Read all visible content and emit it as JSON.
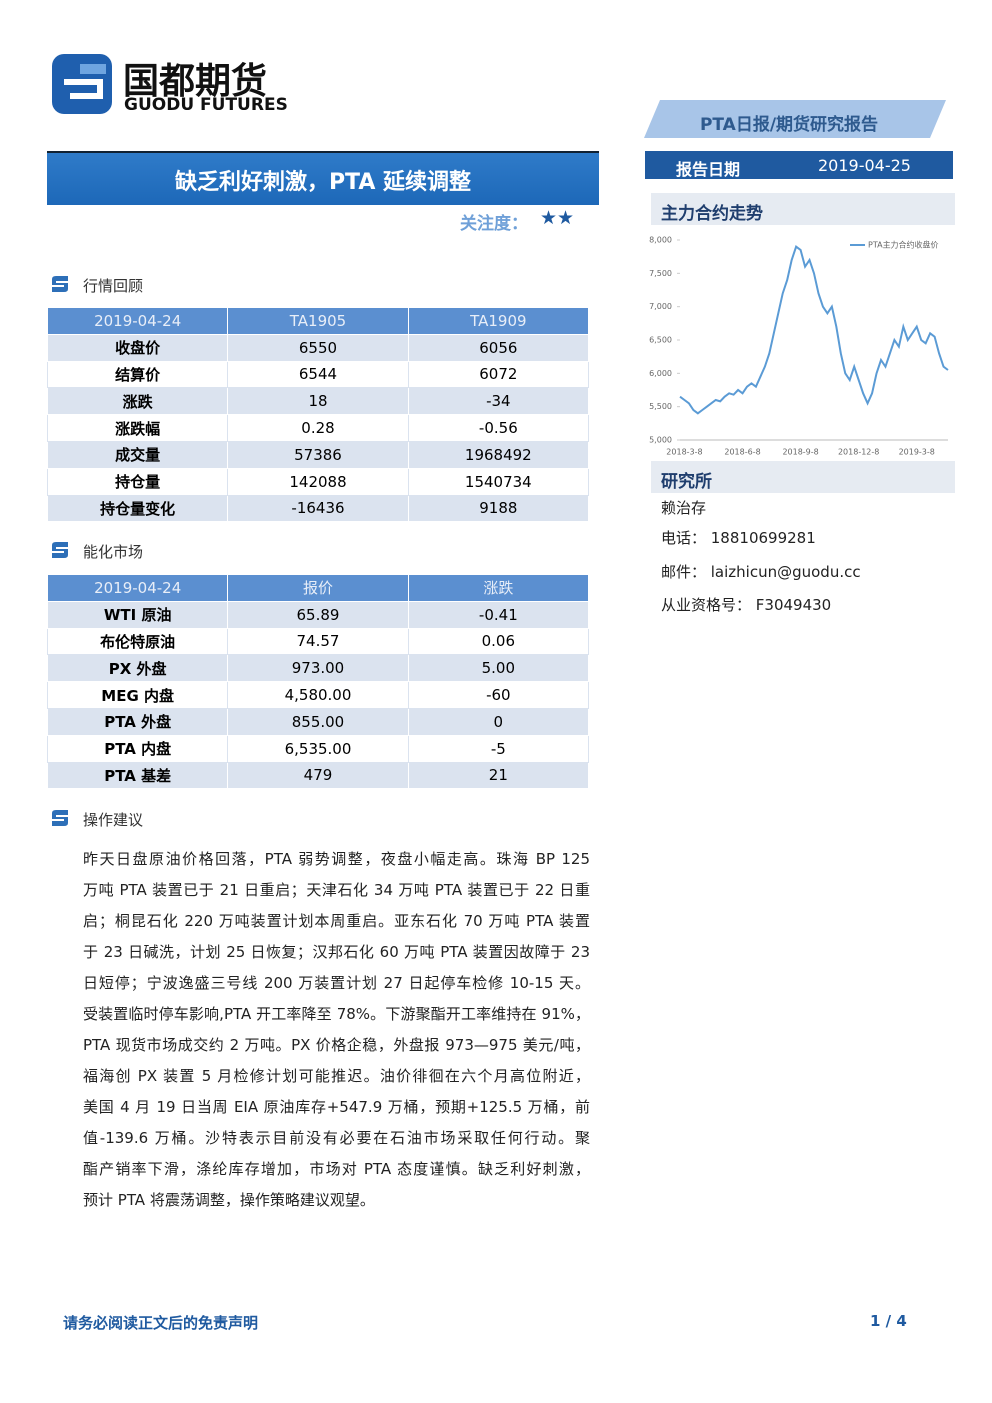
{
  "header": {
    "logo_cn": "国都期货",
    "logo_en": "GUODU FUTURES",
    "report_type": "PTA日报/期货研究报告",
    "date_label": "报告日期",
    "date": "2019-04-25"
  },
  "title": "缺乏利好刺激，PTA 延续调整",
  "attention": {
    "label": "关注度：",
    "stars": "★★"
  },
  "market_review": {
    "heading": "行情回顾",
    "table": {
      "header": [
        "2019-04-24",
        "TA1905",
        "TA1909"
      ],
      "rows": [
        [
          "收盘价",
          "6550",
          "6056"
        ],
        [
          "结算价",
          "6544",
          "6072"
        ],
        [
          "涨跌",
          "18",
          "-34"
        ],
        [
          "涨跌幅",
          "0.28",
          "-0.56"
        ],
        [
          "成交量",
          "57386",
          "1968492"
        ],
        [
          "持仓量",
          "142088",
          "1540734"
        ],
        [
          "持仓量变化",
          "-16436",
          "9188"
        ]
      ]
    }
  },
  "energy_market": {
    "heading": "能化市场",
    "table": {
      "header": [
        "2019-04-24",
        "报价",
        "涨跌"
      ],
      "rows": [
        [
          "WTI 原油",
          "65.89",
          "-0.41"
        ],
        [
          "布伦特原油",
          "74.57",
          "0.06"
        ],
        [
          "PX 外盘",
          "973.00",
          "5.00"
        ],
        [
          "MEG 内盘",
          "4,580.00",
          "-60"
        ],
        [
          "PTA 外盘",
          "855.00",
          "0"
        ],
        [
          "PTA 内盘",
          "6,535.00",
          "-5"
        ],
        [
          "PTA 基差",
          "479",
          "21"
        ]
      ]
    }
  },
  "advice": {
    "heading": "操作建议",
    "lines": [
      "昨天日盘原油价格回落，PTA 弱势调整，夜盘小幅走高。珠海 BP 125",
      "万吨 PTA 装置已于 21 日重启；天津石化 34 万吨 PTA 装置已于 22 日重",
      "启；桐昆石化 220 万吨装置计划本周重启。亚东石化 70 万吨 PTA 装置",
      "于 23 日碱洗，计划 25 日恢复；汉邦石化 60 万吨 PTA 装置因故障于 23",
      "日短停；宁波逸盛三号线 200 万装置计划 27 日起停车检修 10-15 天。",
      "受装置临时停车影响,PTA 开工率降至 78%。下游聚酯开工率维持在 91%，",
      "PTA 现货市场成交约 2 万吨。PX 价格企稳，外盘报 973—975 美元/吨，",
      "福海创 PX 装置 5 月检修计划可能推迟。油价徘徊在六个月高位附近，",
      "美国 4 月 19 日当周 EIA 原油库存+547.9 万桶，预期+125.5 万桶，前",
      "值-139.6 万桶。沙特表示目前没有必要在石油市场采取任何行动。聚",
      "酯产销率下滑，涤纶库存增加，市场对 PTA 态度谨慎。缺乏利好刺激，",
      "预计 PTA 将震荡调整，操作策略建议观望。"
    ]
  },
  "sidebar": {
    "chart_heading": "主力合约走势",
    "research_heading": "研究所",
    "analyst": "赖治存",
    "phone": "电话： 18810699281",
    "email": "邮件： laizhicun@guodu.cc",
    "license": "从业资格号： F3049430"
  },
  "chart_data": {
    "type": "line",
    "ylim": [
      5000,
      8000
    ],
    "yticks": [
      {
        "value": 5000,
        "label": "5,000"
      },
      {
        "value": 5500,
        "label": "5,500"
      },
      {
        "value": 6000,
        "label": "6,000"
      },
      {
        "value": 6500,
        "label": "6,500"
      },
      {
        "value": 7000,
        "label": "7,000"
      },
      {
        "value": 7500,
        "label": "7,500"
      },
      {
        "value": 8000,
        "label": "8,000"
      }
    ],
    "categories": [
      null,
      "2018-3-8",
      null,
      null,
      null,
      null,
      null,
      null,
      null,
      null,
      null,
      null,
      null,
      null,
      "2018-6-8",
      null,
      null,
      null,
      null,
      null,
      null,
      null,
      null,
      null,
      null,
      null,
      null,
      "2018-9-8",
      null,
      null,
      null,
      null,
      null,
      null,
      null,
      null,
      null,
      null,
      null,
      null,
      "2018-12-8",
      null,
      null,
      null,
      null,
      null,
      null,
      null,
      null,
      null,
      null,
      null,
      null,
      "2019-3-8",
      null,
      null,
      null,
      null,
      null,
      null,
      null
    ],
    "series": [
      {
        "name": "PTA主力合约收盘价",
        "color": "#5b9bd5",
        "values": [
          5650,
          5600,
          5550,
          5450,
          5400,
          5450,
          5500,
          5550,
          5600,
          5580,
          5650,
          5700,
          5680,
          5750,
          5700,
          5800,
          5850,
          5800,
          5950,
          6100,
          6300,
          6600,
          6900,
          7200,
          7400,
          7700,
          7900,
          7850,
          7600,
          7700,
          7500,
          7200,
          7000,
          6900,
          7000,
          6700,
          6300,
          6000,
          5900,
          6100,
          5900,
          5700,
          5550,
          5700,
          6000,
          6200,
          6100,
          6300,
          6500,
          6400,
          6700,
          6500,
          6600,
          6700,
          6500,
          6450,
          6600,
          6550,
          6300,
          6100,
          6050
        ]
      }
    ]
  },
  "footer": {
    "disclaimer": "请务必阅读正文后的免责声明",
    "page": "1 / 4"
  }
}
